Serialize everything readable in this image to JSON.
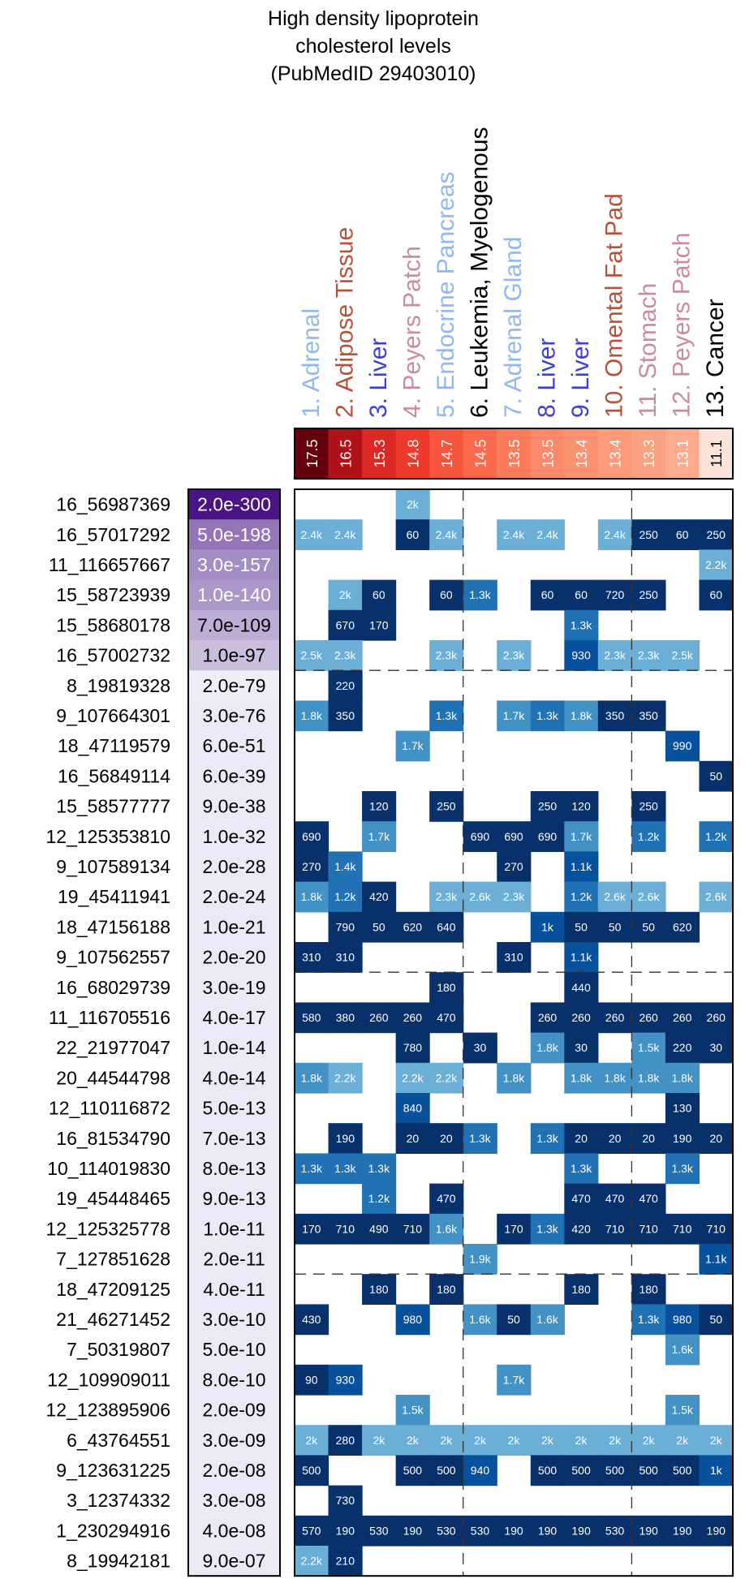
{
  "chart_data": {
    "type": "heatmap",
    "title": [
      "High density lipoprotein",
      "cholesterol levels",
      "(PubMedID 29403010)"
    ],
    "columns": [
      {
        "label": "1. Adrenal",
        "color": "#8fb8ee",
        "score": "17.5"
      },
      {
        "label": "2. Adipose Tissue",
        "color": "#b5523b",
        "score": "16.5"
      },
      {
        "label": "3. Liver",
        "color": "#3f3fd6",
        "score": "15.3"
      },
      {
        "label": "4. Peyers Patch",
        "color": "#c98aa6",
        "score": "14.8"
      },
      {
        "label": "5. Endocrine Pancreas",
        "color": "#8fb8ee",
        "score": "14.7"
      },
      {
        "label": "6. Leukemia, Myelogenous",
        "color": "#000000",
        "score": "14.5"
      },
      {
        "label": "7. Adrenal Gland",
        "color": "#8fb8ee",
        "score": "13.5"
      },
      {
        "label": "8. Liver",
        "color": "#3f3fd6",
        "score": "13.5"
      },
      {
        "label": "9. Liver",
        "color": "#3f3fd6",
        "score": "13.4"
      },
      {
        "label": "10. Omental Fat Pad",
        "color": "#b5523b",
        "score": "13.4"
      },
      {
        "label": "11. Stomach",
        "color": "#c98aa6",
        "score": "13.3"
      },
      {
        "label": "12. Peyers Patch",
        "color": "#c98aa6",
        "score": "13.1"
      },
      {
        "label": "13. Cancer",
        "color": "#000000",
        "score": "11.1"
      }
    ],
    "score_colors": [
      "#67000d",
      "#b11218",
      "#db2a26",
      "#ee3a2c",
      "#f5553d",
      "#fb6a4a",
      "#fb7c5c",
      "#fc8a6a",
      "#fc9272",
      "#fc9a7b",
      "#fca082",
      "#fcab8f",
      "#fee4d8"
    ],
    "rows": [
      {
        "label": "16_56987369",
        "pval": "2.0e-300",
        "cells": [
          "",
          "",
          "",
          "2k",
          "",
          "",
          "",
          "",
          "",
          "",
          "",
          "",
          ""
        ]
      },
      {
        "label": "16_57017292",
        "pval": "5.0e-198",
        "cells": [
          "2.4k",
          "2.4k",
          "",
          "60",
          "2.4k",
          "",
          "2.4k",
          "2.4k",
          "",
          "2.4k",
          "250",
          "60",
          "250"
        ]
      },
      {
        "label": "11_116657667",
        "pval": "3.0e-157",
        "cells": [
          "",
          "",
          "",
          "",
          "",
          "",
          "",
          "",
          "",
          "",
          "",
          "",
          "2.2k"
        ]
      },
      {
        "label": "15_58723939",
        "pval": "1.0e-140",
        "cells": [
          "",
          "2k",
          "60",
          "",
          "60",
          "1.3k",
          "",
          "60",
          "60",
          "720",
          "250",
          "",
          "60"
        ]
      },
      {
        "label": "15_58680178",
        "pval": "7.0e-109",
        "cells": [
          "",
          "670",
          "170",
          "",
          "",
          "",
          "",
          "",
          "1.3k",
          "",
          "",
          "",
          ""
        ]
      },
      {
        "label": "16_57002732",
        "pval": "1.0e-97",
        "cells": [
          "2.5k",
          "2.3k",
          "",
          "",
          "2.3k",
          "",
          "2.3k",
          "",
          "930",
          "2.3k",
          "2.3k",
          "2.5k",
          ""
        ]
      },
      {
        "label": "8_19819328",
        "pval": "2.0e-79",
        "cells": [
          "",
          "220",
          "",
          "",
          "",
          "",
          "",
          "",
          "",
          "",
          "",
          "",
          ""
        ]
      },
      {
        "label": "9_107664301",
        "pval": "3.0e-76",
        "cells": [
          "1.8k",
          "350",
          "",
          "",
          "1.3k",
          "",
          "1.7k",
          "1.3k",
          "1.8k",
          "350",
          "350",
          "",
          ""
        ]
      },
      {
        "label": "18_47119579",
        "pval": "6.0e-51",
        "cells": [
          "",
          "",
          "",
          "1.7k",
          "",
          "",
          "",
          "",
          "",
          "",
          "",
          "990",
          ""
        ]
      },
      {
        "label": "16_56849114",
        "pval": "6.0e-39",
        "cells": [
          "",
          "",
          "",
          "",
          "",
          "",
          "",
          "",
          "",
          "",
          "",
          "",
          "50"
        ]
      },
      {
        "label": "15_58577777",
        "pval": "9.0e-38",
        "cells": [
          "",
          "",
          "120",
          "",
          "250",
          "",
          "",
          "250",
          "120",
          "",
          "250",
          "",
          ""
        ]
      },
      {
        "label": "12_125353810",
        "pval": "1.0e-32",
        "cells": [
          "690",
          "",
          "1.7k",
          "",
          "",
          "690",
          "690",
          "690",
          "1.7k",
          "",
          "1.2k",
          "",
          "1.2k"
        ]
      },
      {
        "label": "9_107589134",
        "pval": "2.0e-28",
        "cells": [
          "270",
          "1.4k",
          "",
          "",
          "",
          "",
          "270",
          "",
          "1.1k",
          "",
          "",
          "",
          ""
        ]
      },
      {
        "label": "19_45411941",
        "pval": "2.0e-24",
        "cells": [
          "1.8k",
          "1.2k",
          "420",
          "",
          "2.3k",
          "2.6k",
          "2.3k",
          "",
          "1.2k",
          "2.6k",
          "2.6k",
          "",
          "2.6k"
        ]
      },
      {
        "label": "18_47156188",
        "pval": "1.0e-21",
        "cells": [
          "",
          "790",
          "50",
          "620",
          "640",
          "",
          "",
          "1k",
          "50",
          "50",
          "50",
          "620",
          ""
        ]
      },
      {
        "label": "9_107562557",
        "pval": "2.0e-20",
        "cells": [
          "310",
          "310",
          "",
          "",
          "",
          "",
          "310",
          "",
          "1.1k",
          "",
          "",
          "",
          ""
        ]
      },
      {
        "label": "16_68029739",
        "pval": "3.0e-19",
        "cells": [
          "",
          "",
          "",
          "",
          "180",
          "",
          "",
          "",
          "440",
          "",
          "",
          "",
          ""
        ]
      },
      {
        "label": "11_116705516",
        "pval": "4.0e-17",
        "cells": [
          "580",
          "380",
          "260",
          "260",
          "470",
          "",
          "",
          "260",
          "260",
          "260",
          "260",
          "260",
          "260"
        ]
      },
      {
        "label": "22_21977047",
        "pval": "1.0e-14",
        "cells": [
          "",
          "",
          "",
          "780",
          "",
          "30",
          "",
          "1.8k",
          "30",
          "",
          "1.5k",
          "220",
          "30"
        ]
      },
      {
        "label": "20_44544798",
        "pval": "4.0e-14",
        "cells": [
          "1.8k",
          "2.2k",
          "",
          "2.2k",
          "2.2k",
          "",
          "1.8k",
          "",
          "1.8k",
          "1.8k",
          "1.8k",
          "1.8k",
          ""
        ]
      },
      {
        "label": "12_110116872",
        "pval": "5.0e-13",
        "cells": [
          "",
          "",
          "",
          "840",
          "",
          "",
          "",
          "",
          "",
          "",
          "",
          "130",
          ""
        ]
      },
      {
        "label": "16_81534790",
        "pval": "7.0e-13",
        "cells": [
          "",
          "190",
          "",
          "20",
          "20",
          "1.3k",
          "",
          "1.3k",
          "20",
          "20",
          "20",
          "190",
          "20"
        ]
      },
      {
        "label": "10_114019830",
        "pval": "8.0e-13",
        "cells": [
          "1.3k",
          "1.3k",
          "1.3k",
          "",
          "",
          "",
          "",
          "",
          "1.3k",
          "",
          "",
          "1.3k",
          ""
        ]
      },
      {
        "label": "19_45448465",
        "pval": "9.0e-13",
        "cells": [
          "",
          "",
          "1.2k",
          "",
          "470",
          "",
          "",
          "",
          "470",
          "470",
          "470",
          "",
          ""
        ]
      },
      {
        "label": "12_125325778",
        "pval": "1.0e-11",
        "cells": [
          "170",
          "710",
          "490",
          "710",
          "1.6k",
          "",
          "170",
          "1.3k",
          "420",
          "710",
          "710",
          "710",
          "710"
        ]
      },
      {
        "label": "7_127851628",
        "pval": "2.0e-11",
        "cells": [
          "",
          "",
          "",
          "",
          "",
          "1.9k",
          "",
          "",
          "",
          "",
          "",
          "",
          "1.1k"
        ]
      },
      {
        "label": "18_47209125",
        "pval": "4.0e-11",
        "cells": [
          "",
          "",
          "180",
          "",
          "180",
          "",
          "",
          "",
          "180",
          "",
          "180",
          "",
          ""
        ]
      },
      {
        "label": "21_46271452",
        "pval": "3.0e-10",
        "cells": [
          "430",
          "",
          "",
          "980",
          "",
          "1.6k",
          "50",
          "1.6k",
          "",
          "",
          "1.3k",
          "980",
          "50"
        ]
      },
      {
        "label": "7_50319807",
        "pval": "5.0e-10",
        "cells": [
          "",
          "",
          "",
          "",
          "",
          "",
          "",
          "",
          "",
          "",
          "",
          "1.6k",
          ""
        ]
      },
      {
        "label": "12_109909011",
        "pval": "8.0e-10",
        "cells": [
          "90",
          "930",
          "",
          "",
          "",
          "",
          "1.7k",
          "",
          "",
          "",
          "",
          "",
          ""
        ]
      },
      {
        "label": "12_123895906",
        "pval": "2.0e-09",
        "cells": [
          "",
          "",
          "",
          "1.5k",
          "",
          "",
          "",
          "",
          "",
          "",
          "",
          "1.5k",
          ""
        ]
      },
      {
        "label": "6_43764551",
        "pval": "3.0e-09",
        "cells": [
          "2k",
          "280",
          "2k",
          "2k",
          "2k",
          "2k",
          "2k",
          "2k",
          "2k",
          "2k",
          "2k",
          "2k",
          "2k"
        ]
      },
      {
        "label": "9_123631225",
        "pval": "2.0e-08",
        "cells": [
          "500",
          "",
          "",
          "500",
          "500",
          "940",
          "",
          "500",
          "500",
          "500",
          "500",
          "500",
          "1k"
        ]
      },
      {
        "label": "3_12374332",
        "pval": "3.0e-08",
        "cells": [
          "",
          "730",
          "",
          "",
          "",
          "",
          "",
          "",
          "",
          "",
          "",
          "",
          ""
        ]
      },
      {
        "label": "1_230294916",
        "pval": "4.0e-08",
        "cells": [
          "570",
          "190",
          "530",
          "190",
          "530",
          "530",
          "190",
          "190",
          "190",
          "530",
          "190",
          "190",
          "190"
        ]
      },
      {
        "label": "8_19942181",
        "pval": "9.0e-07",
        "cells": [
          "2.2k",
          "210",
          "",
          "",
          "",
          "",
          "",
          "",
          "",
          "",
          "",
          "",
          ""
        ]
      }
    ]
  }
}
